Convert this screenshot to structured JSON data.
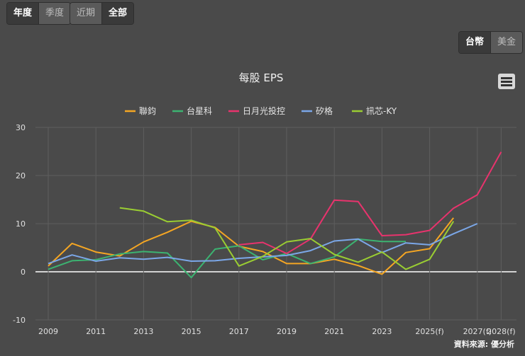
{
  "period_tabs": [
    {
      "label": "年度",
      "active": true
    },
    {
      "label": "季度",
      "active": false
    },
    {
      "label": "近期",
      "active": false
    },
    {
      "label": "全部",
      "active": true
    }
  ],
  "currency_tabs": [
    {
      "label": "台幣",
      "active": true
    },
    {
      "label": "美金",
      "active": false
    }
  ],
  "menu_icon": "hamburger-menu-icon",
  "chart_data": {
    "type": "line",
    "title": "每股 EPS",
    "credit": "資料來源: 優分析",
    "ylim": [
      -10,
      30
    ],
    "y_ticks": [
      -10,
      0,
      10,
      20,
      30
    ],
    "x": [
      "2009",
      "2010",
      "2011",
      "2012",
      "2013",
      "2014",
      "2015",
      "2016",
      "2017",
      "2018",
      "2019",
      "2020",
      "2021",
      "2022",
      "2023",
      "2024",
      "2025(f)",
      "2026(f)",
      "2027(f)",
      "2028(f)"
    ],
    "x_tick_labels": [
      "2009",
      "2011",
      "2013",
      "2015",
      "2017",
      "2019",
      "2021",
      "2023",
      "2025(f)",
      "2027(f)",
      "2028(f)"
    ],
    "grid": true,
    "legend_position": "top-center",
    "series": [
      {
        "name": "聯鈞",
        "color": "#f5a623",
        "values": [
          1.2,
          5.9,
          4.1,
          3.3,
          6.2,
          8.2,
          10.5,
          9.2,
          5.3,
          4.2,
          1.7,
          1.7,
          2.6,
          1.3,
          -0.5,
          4.0,
          4.8,
          11.2,
          null,
          null
        ]
      },
      {
        "name": "台星科",
        "color": "#3cb371",
        "values": [
          0.5,
          2.3,
          2.5,
          3.7,
          4.2,
          3.9,
          -1.2,
          4.7,
          5.4,
          2.5,
          3.8,
          1.7,
          3.1,
          6.8,
          6.3,
          6.3,
          null,
          null,
          null,
          null
        ]
      },
      {
        "name": "日月光投控",
        "color": "#e8336d",
        "values": [
          null,
          null,
          null,
          null,
          null,
          null,
          null,
          null,
          5.6,
          6.1,
          3.8,
          6.8,
          14.9,
          14.6,
          7.5,
          7.7,
          8.6,
          13.2,
          16.0,
          24.9
        ]
      },
      {
        "name": "矽格",
        "color": "#7ba7e8",
        "values": [
          1.7,
          3.5,
          2.2,
          2.9,
          2.6,
          3.0,
          2.2,
          2.3,
          2.8,
          3.1,
          3.4,
          4.4,
          6.4,
          6.8,
          4.0,
          6.0,
          5.6,
          7.9,
          10.0,
          null
        ]
      },
      {
        "name": "訊芯-KY",
        "color": "#9acd32",
        "values": [
          null,
          null,
          null,
          13.3,
          12.6,
          10.4,
          10.7,
          9.1,
          1.2,
          3.2,
          6.2,
          6.9,
          3.6,
          2.0,
          4.1,
          0.5,
          2.6,
          10.5,
          null,
          null
        ]
      }
    ]
  }
}
